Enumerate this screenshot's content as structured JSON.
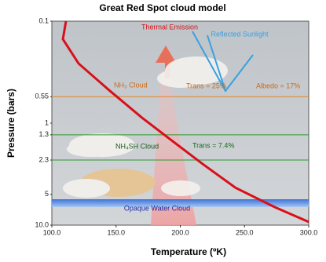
{
  "chart_data": {
    "type": "line",
    "title": "Great Red Spot cloud model",
    "xlabel": "Temperature (ºK)",
    "ylabel": "Pressure (bars)",
    "xlim": [
      100,
      300
    ],
    "xticks": [
      {
        "value": 100,
        "label": "100.0"
      },
      {
        "value": 150,
        "label": "150.0"
      },
      {
        "value": 200,
        "label": "200.0"
      },
      {
        "value": 250,
        "label": "250.0"
      },
      {
        "value": 300,
        "label": "300.0"
      }
    ],
    "ylim": [
      0.1,
      10
    ],
    "yticks": [
      0.1,
      0.55,
      1,
      1.3,
      2.3,
      5,
      {
        "value": 10,
        "label": "10.0"
      }
    ],
    "y_scale": "log",
    "y_inverted": true,
    "series": [
      {
        "color": "#d8101a",
        "x": [
          111,
          108.6,
          120.8,
          145,
          170,
          194,
          219,
          243,
          274,
          300
        ],
        "values": [
          0.1,
          0.15,
          0.26,
          0.48,
          0.88,
          1.5,
          2.6,
          4.3,
          6.7,
          9.3
        ]
      }
    ],
    "annotations": {
      "thermal": "Thermal Emission",
      "sunlight": "Reflected Sunlight",
      "nh3": "NH₃ Cloud",
      "trans1": "Trans = 25%",
      "albedo": "Albedo = 17%",
      "nh4sh": "NH₄SH Cloud",
      "trans2": "Trans = 7.4%",
      "water": "Opaque Water Cloud"
    }
  }
}
